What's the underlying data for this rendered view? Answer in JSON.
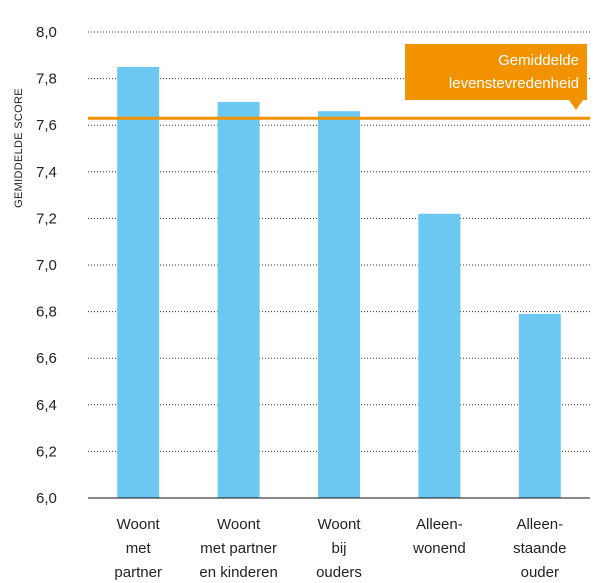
{
  "chart_data": {
    "type": "bar",
    "ylabel": "GEMIDDELDE SCORE",
    "ylim": [
      6.0,
      8.0
    ],
    "yticks": [
      "8,0",
      "7,8",
      "7,6",
      "7,4",
      "7,2",
      "7,0",
      "6,8",
      "6,6",
      "6,4",
      "6,2",
      "6,0"
    ],
    "ytick_values": [
      8.0,
      7.8,
      7.6,
      7.4,
      7.2,
      7.0,
      6.8,
      6.6,
      6.4,
      6.2,
      6.0
    ],
    "categories": [
      [
        "Woont",
        "met",
        "partner"
      ],
      [
        "Woont",
        "met partner",
        "en kinderen"
      ],
      [
        "Woont",
        "bij",
        "ouders"
      ],
      [
        "Alleen-",
        "wonend"
      ],
      [
        "Alleen-",
        "staande",
        "ouder"
      ]
    ],
    "values": [
      7.85,
      7.7,
      7.66,
      7.22,
      6.79
    ],
    "reference_line": {
      "value": 7.63,
      "label": [
        "Gemiddelde",
        "levenstevredenheid"
      ]
    },
    "grid": true,
    "colors": {
      "bar": "#6CC7F1",
      "reference": "#F39200",
      "grid": "#333333"
    }
  }
}
